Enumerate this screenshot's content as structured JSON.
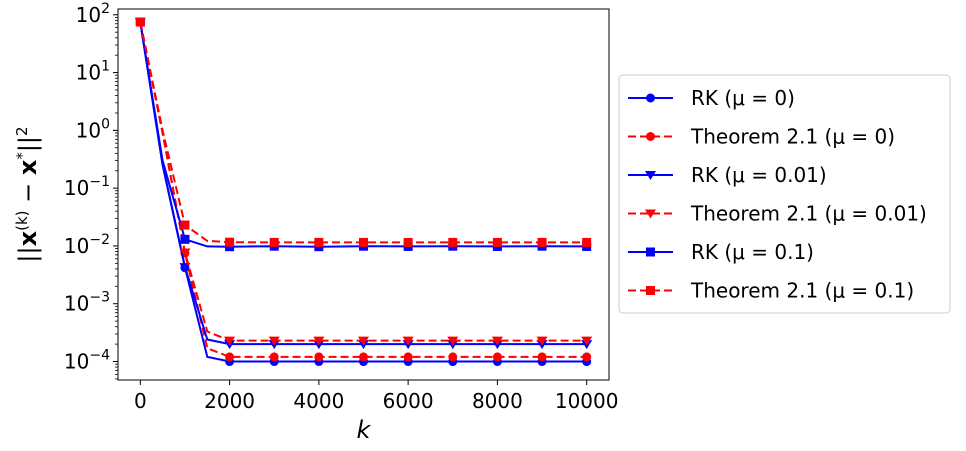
{
  "chart_data": {
    "type": "line",
    "xlabel": "k",
    "ylabel": "||x(k) − x*||2",
    "x_scale": "linear",
    "y_scale": "log",
    "xlim": [
      -500,
      10500
    ],
    "ylim_exp": [
      -4.32,
      2.1
    ],
    "x_ticks": [
      0,
      2000,
      4000,
      6000,
      8000,
      10000
    ],
    "x_tick_labels": [
      "0",
      "2000",
      "4000",
      "6000",
      "8000",
      "10000"
    ],
    "y_ticks_exp": [
      -4,
      -3,
      -2,
      -1,
      0,
      1,
      2
    ],
    "y_tick_labels": [
      {
        "base": "10",
        "exp": "−4"
      },
      {
        "base": "10",
        "exp": "−3"
      },
      {
        "base": "10",
        "exp": "−2"
      },
      {
        "base": "10",
        "exp": "−1"
      },
      {
        "base": "10",
        "exp": "0"
      },
      {
        "base": "10",
        "exp": "1"
      },
      {
        "base": "10",
        "exp": "2"
      }
    ],
    "grid": false,
    "legend_position": "outside-right",
    "colors": {
      "rk": "#0000ff",
      "theorem": "#ff0000"
    },
    "series": [
      {
        "name": "RK (μ = 0)",
        "color": "#0000ff",
        "dash": "solid",
        "marker": "circle",
        "x": [
          0,
          500,
          1000,
          1500,
          2000,
          3000,
          4000,
          5000,
          6000,
          7000,
          8000,
          9000,
          10000
        ],
        "y": [
          75,
          0.25,
          0.0042,
          0.00012,
          0.0001,
          0.0001,
          0.0001,
          0.0001,
          0.0001,
          0.0001,
          0.0001,
          0.0001,
          0.0001
        ]
      },
      {
        "name": "Theorem 2.1 (μ = 0)",
        "color": "#ff0000",
        "dash": "dashed",
        "marker": "circle",
        "x": [
          0,
          500,
          1000,
          1500,
          2000,
          3000,
          4000,
          5000,
          6000,
          7000,
          8000,
          9000,
          10000
        ],
        "y": [
          75,
          0.9,
          0.0075,
          0.00017,
          0.00012,
          0.00012,
          0.00012,
          0.00012,
          0.00012,
          0.00012,
          0.00012,
          0.00012,
          0.00012
        ]
      },
      {
        "name": "RK (μ = 0.01)",
        "color": "#0000ff",
        "dash": "solid",
        "marker": "triangle-down",
        "x": [
          0,
          500,
          1000,
          1500,
          2000,
          3000,
          4000,
          5000,
          6000,
          7000,
          8000,
          9000,
          10000
        ],
        "y": [
          75,
          0.26,
          0.0043,
          0.00024,
          0.0002,
          0.0002,
          0.0002,
          0.0002,
          0.0002,
          0.0002,
          0.0002,
          0.0002,
          0.0002
        ]
      },
      {
        "name": "Theorem 2.1 (μ = 0.01)",
        "color": "#ff0000",
        "dash": "dashed",
        "marker": "triangle-down",
        "x": [
          0,
          500,
          1000,
          1500,
          2000,
          3000,
          4000,
          5000,
          6000,
          7000,
          8000,
          9000,
          10000
        ],
        "y": [
          75,
          0.9,
          0.0077,
          0.00033,
          0.00023,
          0.00023,
          0.00023,
          0.00023,
          0.00023,
          0.00023,
          0.00023,
          0.00023,
          0.00023
        ]
      },
      {
        "name": "RK (μ = 0.1)",
        "color": "#0000ff",
        "dash": "solid",
        "marker": "square",
        "x": [
          0,
          500,
          1000,
          1500,
          2000,
          3000,
          4000,
          5000,
          6000,
          7000,
          8000,
          9000,
          10000
        ],
        "y": [
          75,
          0.3,
          0.013,
          0.0098,
          0.0097,
          0.0099,
          0.0097,
          0.0099,
          0.0098,
          0.0099,
          0.0098,
          0.0099,
          0.0098
        ]
      },
      {
        "name": "Theorem 2.1 (μ = 0.1)",
        "color": "#ff0000",
        "dash": "dashed",
        "marker": "square",
        "x": [
          0,
          500,
          1000,
          1500,
          2000,
          3000,
          4000,
          5000,
          6000,
          7000,
          8000,
          9000,
          10000
        ],
        "y": [
          75,
          1.0,
          0.023,
          0.0122,
          0.0116,
          0.0115,
          0.0115,
          0.0115,
          0.0115,
          0.0115,
          0.0115,
          0.0115,
          0.0115
        ]
      }
    ]
  }
}
